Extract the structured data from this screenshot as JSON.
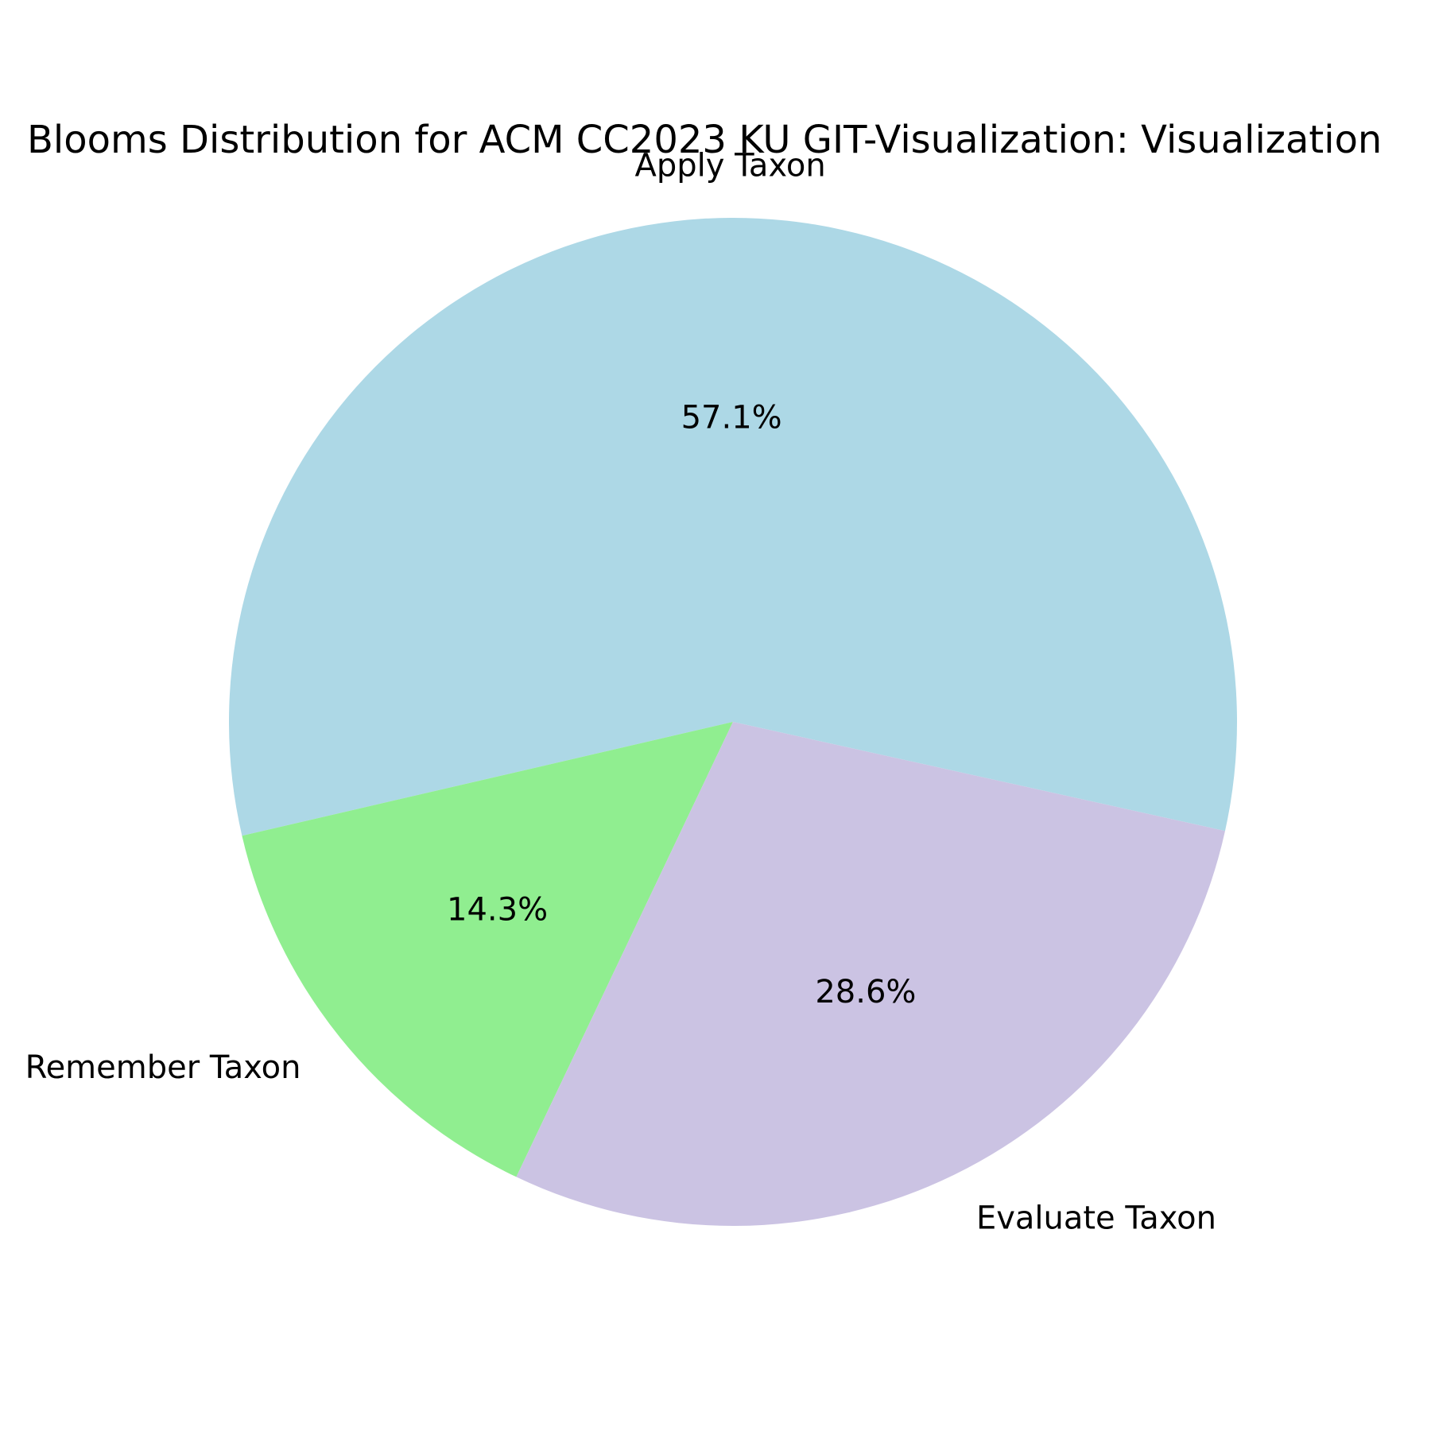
{
  "chart_data": {
    "type": "pie",
    "title": "Blooms Distribution for ACM CC2023 KU GIT-Visualization: Visualization",
    "slices": [
      {
        "label": "Apply Taxon",
        "value": 57.1,
        "pct_label": "57.1%",
        "color": "#add8e6"
      },
      {
        "label": "Remember Taxon",
        "value": 14.3,
        "pct_label": "14.3%",
        "color": "#90ee90"
      },
      {
        "label": "Evaluate Taxon",
        "value": 28.6,
        "pct_label": "28.6%",
        "color": "#cbc3e3"
      }
    ],
    "start_angle_deg": -12.5,
    "direction": "counterclockwise",
    "legend": "none"
  }
}
